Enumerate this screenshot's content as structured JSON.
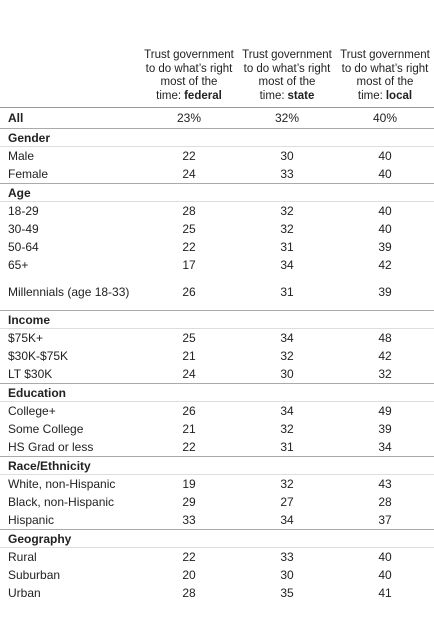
{
  "header": {
    "columns": [
      {
        "text": "Trust government to do what’s right most of the time:",
        "emphasis": "federal"
      },
      {
        "text": "Trust government to do what’s right most of the time:",
        "emphasis": "state"
      },
      {
        "text": "Trust government to do what’s right most of the time:",
        "emphasis": "local"
      }
    ]
  },
  "all": {
    "label": "All",
    "values": [
      "23%",
      "32%",
      "40%"
    ]
  },
  "sections": [
    {
      "title": "Gender",
      "rows": [
        {
          "label": "Male",
          "values": [
            22,
            30,
            40
          ]
        },
        {
          "label": "Female",
          "values": [
            24,
            33,
            40
          ]
        }
      ]
    },
    {
      "title": "Age",
      "rows": [
        {
          "label": "18-29",
          "values": [
            28,
            32,
            40
          ]
        },
        {
          "label": "30-49",
          "values": [
            25,
            32,
            40
          ]
        },
        {
          "label": "50-64",
          "values": [
            22,
            31,
            39
          ]
        },
        {
          "label": "65+",
          "values": [
            17,
            34,
            42
          ]
        },
        {
          "label": "Millennials (age 18-33)",
          "values": [
            26,
            31,
            39
          ]
        }
      ]
    },
    {
      "title": "Income",
      "rows": [
        {
          "label": "$75K+",
          "values": [
            25,
            34,
            48
          ]
        },
        {
          "label": "$30K-$75K",
          "values": [
            21,
            32,
            42
          ]
        },
        {
          "label": "LT $30K",
          "values": [
            24,
            30,
            32
          ]
        }
      ]
    },
    {
      "title": "Education",
      "rows": [
        {
          "label": "College+",
          "values": [
            26,
            34,
            49
          ]
        },
        {
          "label": "Some College",
          "values": [
            21,
            32,
            39
          ]
        },
        {
          "label": "HS Grad or less",
          "values": [
            22,
            31,
            34
          ]
        }
      ]
    },
    {
      "title": "Race/Ethnicity",
      "rows": [
        {
          "label": "White, non-Hispanic",
          "values": [
            19,
            32,
            43
          ]
        },
        {
          "label": "Black, non-Hispanic",
          "values": [
            29,
            27,
            28
          ]
        },
        {
          "label": "Hispanic",
          "values": [
            33,
            34,
            37
          ]
        }
      ]
    },
    {
      "title": "Geography",
      "rows": [
        {
          "label": "Rural",
          "values": [
            22,
            33,
            40
          ]
        },
        {
          "label": "Suburban",
          "values": [
            20,
            30,
            40
          ]
        },
        {
          "label": "Urban",
          "values": [
            28,
            35,
            41
          ]
        }
      ]
    }
  ]
}
